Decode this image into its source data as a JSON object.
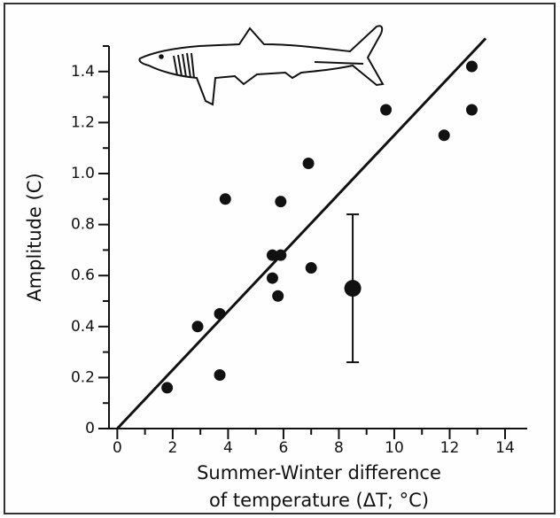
{
  "chart_data": {
    "type": "scatter",
    "ylabel": "Amplitude (C)",
    "xlabel": [
      "Summer-Winter difference",
      "of temperature (ΔT; °C)"
    ],
    "xlim": [
      -0.3,
      14.8
    ],
    "ylim": [
      0,
      1.5
    ],
    "xticks": [
      0,
      2,
      4,
      6,
      8,
      10,
      12,
      14
    ],
    "xminorticks": [
      1,
      3,
      5,
      7,
      9,
      11,
      13
    ],
    "yticks": [
      0,
      0.2,
      0.4,
      0.6,
      0.8,
      {
        "value": 1,
        "label": "1.0"
      },
      1.2,
      1.4
    ],
    "yminorticks": [
      0.1,
      0.3,
      0.5,
      0.7,
      0.9,
      1.1,
      1.3,
      1.5
    ],
    "series": [
      {
        "color": "#111111",
        "x": [
          1.8,
          2.9,
          3.7,
          3.7,
          3.9,
          5.6,
          5.6,
          5.9,
          5.8,
          5.9,
          6.9,
          7.0,
          9.7,
          11.8,
          12.8,
          12.8
        ],
        "values": [
          0.16,
          0.4,
          0.45,
          0.21,
          0.9,
          0.59,
          0.68,
          0.68,
          0.52,
          0.89,
          1.04,
          0.63,
          1.25,
          1.15,
          1.42,
          1.25
        ]
      },
      {
        "color": "#111111",
        "x": [
          8.5
        ],
        "values": [
          0.55
        ],
        "error": [
          0.29
        ]
      }
    ],
    "fit_line": {
      "color": "#111111",
      "x": [
        0,
        13.3
      ],
      "values": [
        0,
        1.53
      ]
    }
  }
}
